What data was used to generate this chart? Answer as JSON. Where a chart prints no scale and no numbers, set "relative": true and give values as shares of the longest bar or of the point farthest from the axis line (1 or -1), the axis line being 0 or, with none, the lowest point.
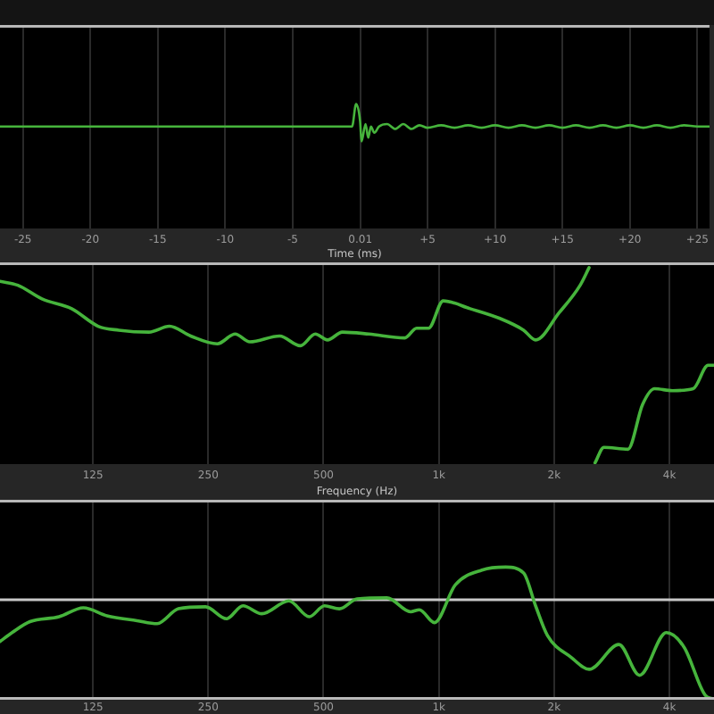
{
  "chart_data": [
    {
      "type": "line",
      "relative": true,
      "color": "#46b43c",
      "xlabel": "Time (ms)",
      "grid": "x",
      "xlim": [
        -26.7,
        25.9
      ],
      "xticks": [
        -25,
        -20,
        -15,
        -10,
        -5,
        0.01,
        {
          "value": 5,
          "label": "+5"
        },
        {
          "value": 10,
          "label": "+10"
        },
        {
          "value": 15,
          "label": "+15"
        },
        {
          "value": 20,
          "label": "+20"
        },
        {
          "value": 25,
          "label": "+25"
        }
      ],
      "x": [
        -26.7,
        -0.6,
        -0.3,
        0,
        0.1,
        0.4,
        0.6,
        0.8,
        1.05,
        1.4,
        2,
        2.6,
        3.2,
        3.8,
        4.4,
        5,
        6,
        7,
        8,
        9,
        10,
        11,
        12,
        13,
        14,
        15,
        16,
        17,
        18,
        19,
        20,
        21,
        22,
        23,
        24,
        25,
        25.9
      ],
      "values": [
        0.82,
        0.82,
        1,
        0.86,
        0.7,
        0.84,
        0.73,
        0.82,
        0.77,
        0.82,
        0.84,
        0.8,
        0.84,
        0.8,
        0.83,
        0.81,
        0.83,
        0.81,
        0.83,
        0.81,
        0.83,
        0.81,
        0.83,
        0.81,
        0.83,
        0.81,
        0.83,
        0.81,
        0.83,
        0.81,
        0.83,
        0.81,
        0.83,
        0.81,
        0.83,
        0.82,
        0.82
      ]
    },
    {
      "type": "line",
      "relative": true,
      "color": "#46b43c",
      "xlabel": "Frequency (Hz)",
      "grid": "x",
      "log": "x",
      "xlim": [
        71.5,
        5230
      ],
      "xticks": [
        125,
        250,
        500,
        {
          "value": 1000,
          "label": "1k"
        },
        {
          "value": 2000,
          "label": "2k"
        },
        {
          "value": 4000,
          "label": "4k"
        }
      ],
      "x": [
        71.5,
        79.6,
        92,
        110,
        129,
        146,
        175,
        198,
        225,
        264,
        294,
        321,
        384,
        435,
        476,
        512,
        560,
        657,
        815,
        875,
        940,
        1027,
        1207,
        1443,
        1665,
        1789,
        2063,
        2339,
        2468,
        2510,
        2558,
        2699,
        3116,
        3406,
        3659,
        4073,
        4614,
        5049,
        5230
      ],
      "values": [
        0.93,
        0.91,
        0.84,
        0.79,
        0.7,
        0.68,
        0.67,
        0.7,
        0.65,
        0.61,
        0.66,
        0.62,
        0.65,
        0.6,
        0.66,
        0.63,
        0.67,
        0.66,
        0.64,
        0.69,
        0.69,
        0.83,
        0.79,
        0.74,
        0.68,
        0.63,
        0.77,
        0.91,
        1,
        null,
        0,
        0.08,
        0.07,
        0.3,
        0.38,
        0.37,
        0.38,
        0.5,
        0.5
      ]
    },
    {
      "type": "line",
      "relative": true,
      "color": "#46b43c",
      "grid": "x",
      "log": "x",
      "xlim": [
        71.5,
        5230
      ],
      "xticks": [
        125,
        250,
        500,
        {
          "value": 1000,
          "label": "1k"
        },
        {
          "value": 2000,
          "label": "2k"
        },
        {
          "value": 4000,
          "label": "4k"
        }
      ],
      "ref_lines": [
        {
          "axis": "y",
          "value": 0,
          "color": "#c8c8c8"
        }
      ],
      "x": [
        71.5,
        76.9,
        85.6,
        102,
        118,
        136,
        163,
        184,
        209,
        246,
        279,
        308,
        345,
        406,
        459,
        503,
        550,
        612,
        732,
        844,
        890,
        974,
        1104,
        1296,
        1495,
        1665,
        1789,
        1922,
        2217,
        2468,
        2952,
        3343,
        3928,
        4373,
        4959,
        5230
      ],
      "values": [
        -0.42,
        -0.33,
        -0.22,
        -0.17,
        -0.08,
        -0.16,
        -0.21,
        -0.24,
        -0.09,
        -0.07,
        -0.19,
        -0.06,
        -0.14,
        -0.01,
        -0.17,
        -0.06,
        -0.09,
        0.01,
        0.02,
        -0.12,
        -0.1,
        -0.23,
        0.15,
        0.3,
        0.33,
        0.27,
        -0.06,
        -0.36,
        -0.58,
        -0.7,
        -0.45,
        -0.76,
        -0.33,
        -0.48,
        -0.96,
        -1
      ]
    }
  ]
}
